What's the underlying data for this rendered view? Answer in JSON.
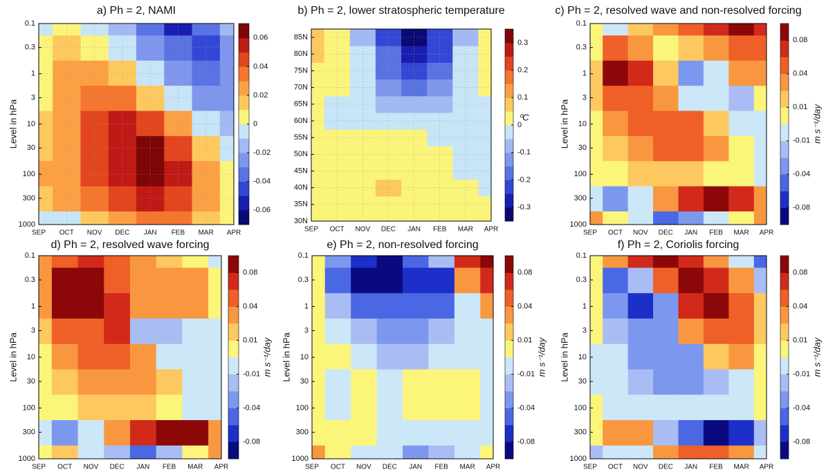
{
  "chart_data": [
    {
      "type": "contour",
      "title": "a) Ph = 2, NAMI",
      "y_label": "Level in hPa",
      "categories": [
        "SEP",
        "OCT",
        "NOV",
        "DEC",
        "JAN",
        "FEB",
        "MAR",
        "APR"
      ],
      "ylim": [
        0.1,
        1000
      ],
      "log_y": true,
      "y_reverse": true,
      "grid": true,
      "yticks": [
        0.1,
        0.3,
        1,
        3,
        10,
        30,
        100,
        300,
        1000
      ],
      "colorbar": {
        "levels": [
          -0.07,
          -0.06,
          -0.05,
          -0.04,
          -0.03,
          -0.02,
          -0.01,
          0,
          0.01,
          0.02,
          0.03,
          0.04,
          0.05,
          0.06,
          0.07
        ],
        "ticks": [
          -0.06,
          -0.04,
          -0.02,
          0,
          0.02,
          0.04,
          0.06
        ],
        "colors": [
          "#0a0a72",
          "#1a1eb0",
          "#3347d6",
          "#5a73e2",
          "#7f96ec",
          "#a3b9f3",
          "#c7e5f7",
          "#fbf47a",
          "#fdc95f",
          "#fba044",
          "#f4762f",
          "#e2461f",
          "#c01a16",
          "#7e0606"
        ]
      },
      "z": [
        [
          -0.005,
          0.005,
          -0.005,
          -0.02,
          -0.04,
          -0.06,
          -0.04,
          -0.02
        ],
        [
          0.002,
          0.01,
          0.005,
          -0.005,
          -0.03,
          -0.04,
          -0.05,
          -0.03
        ],
        [
          0.005,
          0.02,
          0.025,
          0.01,
          -0.01,
          -0.03,
          -0.035,
          -0.03
        ],
        [
          0.005,
          0.025,
          0.035,
          0.035,
          0.01,
          -0.01,
          -0.025,
          -0.025
        ],
        [
          0.01,
          0.025,
          0.04,
          0.05,
          0.04,
          0.02,
          -0.01,
          -0.02
        ],
        [
          0.01,
          0.025,
          0.04,
          0.055,
          0.065,
          0.045,
          0.01,
          -0.01
        ],
        [
          0.025,
          0.025,
          0.04,
          0.055,
          0.065,
          0.055,
          0.025,
          0.005
        ],
        [
          0.01,
          0.02,
          0.035,
          0.045,
          0.05,
          0.045,
          0.025,
          0.005
        ],
        [
          -0.005,
          -0.005,
          0.015,
          0.025,
          0.03,
          0.03,
          0.015,
          0.005
        ]
      ]
    },
    {
      "type": "contour",
      "title": "b) Ph = 2,  lower stratospheric temperature",
      "categories": [
        "SEP",
        "OCT",
        "NOV",
        "DEC",
        "JAN",
        "FEB",
        "MAR",
        "APR"
      ],
      "ylim": [
        30,
        87.5
      ],
      "log_y": false,
      "y_reverse": false,
      "grid": true,
      "yticks": [
        {
          "value": 30,
          "label": "30N"
        },
        {
          "value": 35,
          "label": "35N"
        },
        {
          "value": 40,
          "label": "40N"
        },
        {
          "value": 45,
          "label": "45N"
        },
        {
          "value": 50,
          "label": "50N"
        },
        {
          "value": 55,
          "label": "55N"
        },
        {
          "value": 60,
          "label": "60N"
        },
        {
          "value": 65,
          "label": "65N"
        },
        {
          "value": 70,
          "label": "70N"
        },
        {
          "value": 75,
          "label": "75N"
        },
        {
          "value": 80,
          "label": "80N"
        },
        {
          "value": 85,
          "label": "85N"
        }
      ],
      "colorbar": {
        "label": "⁰C",
        "levels": [
          -0.35,
          -0.3,
          -0.25,
          -0.2,
          -0.15,
          -0.1,
          -0.05,
          0,
          0.05,
          0.1,
          0.15,
          0.2,
          0.25,
          0.3,
          0.35
        ],
        "ticks": [
          -0.3,
          -0.2,
          -0.1,
          0,
          0.1,
          0.2,
          0.3
        ],
        "colors": [
          "#0a0a72",
          "#1a1eb0",
          "#3347d6",
          "#5a73e2",
          "#7f96ec",
          "#a3b9f3",
          "#c7e5f7",
          "#fbf47a",
          "#fdc95f",
          "#fba044",
          "#f4762f",
          "#e2461f",
          "#c01a16",
          "#7e0606"
        ]
      },
      "z": [
        [
          0.02,
          0.02,
          0.02,
          0.02,
          0.02,
          0.02,
          0.02,
          0.01
        ],
        [
          0.02,
          0.02,
          0.02,
          0.02,
          0.02,
          0.02,
          0.02,
          0.01
        ],
        [
          0.02,
          0.02,
          0.02,
          0.06,
          0.02,
          0.02,
          0.01,
          -0.02
        ],
        [
          0.02,
          0.02,
          0.02,
          0.04,
          0.02,
          0.01,
          -0.02,
          -0.02
        ],
        [
          0.02,
          0.02,
          0.02,
          0.03,
          0.02,
          0.01,
          -0.02,
          -0.02
        ],
        [
          0.02,
          0.02,
          0.02,
          0.02,
          0.01,
          -0.01,
          -0.01,
          -0.02
        ],
        [
          0.01,
          -0.02,
          -0.01,
          -0.02,
          -0.03,
          -0.02,
          -0.02,
          -0.02
        ],
        [
          0.01,
          -0.02,
          -0.02,
          -0.07,
          -0.1,
          -0.07,
          -0.02,
          -0.01
        ],
        [
          0.02,
          0.01,
          -0.02,
          -0.12,
          -0.17,
          -0.13,
          -0.03,
          0.01
        ],
        [
          0.03,
          0.01,
          -0.03,
          -0.17,
          -0.25,
          -0.18,
          -0.03,
          0.01
        ],
        [
          0.05,
          0.02,
          -0.03,
          -0.2,
          -0.3,
          -0.22,
          -0.05,
          0.02
        ],
        [
          0.05,
          0.02,
          -0.06,
          -0.25,
          -0.32,
          -0.25,
          -0.06,
          0.02
        ]
      ]
    },
    {
      "type": "contour",
      "title": "c) Ph = 2,  resolved wave and non-resolved forcing",
      "y_label": "Level in hPa",
      "categories": [
        "SEP",
        "OCT",
        "NOV",
        "DEC",
        "JAN",
        "FEB",
        "MAR",
        "APR"
      ],
      "ylim": [
        0.1,
        1000
      ],
      "log_y": true,
      "y_reverse": true,
      "grid": false,
      "yticks": [
        0.1,
        0.3,
        1,
        3,
        10,
        30,
        100,
        300,
        1000
      ],
      "colorbar": {
        "label": "m s⁻¹/day",
        "levels": [
          -0.1,
          -0.08,
          -0.06,
          -0.04,
          -0.02,
          -0.01,
          0,
          0.01,
          0.02,
          0.04,
          0.06,
          0.08,
          0.1
        ],
        "ticks": [
          -0.08,
          -0.04,
          -0.01,
          0.01,
          0.04,
          0.08
        ],
        "colors": [
          "#0a0a80",
          "#1c2fc8",
          "#4a68e4",
          "#7c98ee",
          "#a9bdf4",
          "#cce7f7",
          "#fbf57a",
          "#fdc860",
          "#f99740",
          "#ee6027",
          "#d12a1b",
          "#8c0808"
        ]
      },
      "z": [
        [
          0.005,
          -0.005,
          0.01,
          0.03,
          0.05,
          0.07,
          0.09,
          0.07
        ],
        [
          0.005,
          0.05,
          0.03,
          0.005,
          0.01,
          0.03,
          0.05,
          0.05
        ],
        [
          0.01,
          0.09,
          0.06,
          0.01,
          -0.03,
          -0.01,
          0.02,
          0.03
        ],
        [
          0.01,
          0.05,
          0.05,
          0.03,
          -0.01,
          -0.01,
          -0.02,
          0.005
        ],
        [
          0.005,
          0.03,
          0.05,
          0.05,
          0.04,
          0.01,
          -0.005,
          -0.005
        ],
        [
          0.005,
          0.015,
          0.03,
          0.04,
          0.05,
          0.03,
          0.005,
          -0.005
        ],
        [
          0.005,
          0.005,
          0.01,
          0.015,
          0.01,
          0.005,
          0.005,
          -0.005
        ],
        [
          -0.01,
          -0.03,
          -0.005,
          0.02,
          0.06,
          0.09,
          0.07,
          0.02
        ],
        [
          0.03,
          0.005,
          -0.005,
          -0.06,
          -0.04,
          -0.01,
          0.005,
          0.03
        ]
      ]
    },
    {
      "type": "contour",
      "title": "d) Ph = 2, resolved wave forcing",
      "y_label": "Level in hPa",
      "categories": [
        "SEP",
        "OCT",
        "NOV",
        "DEC",
        "JAN",
        "FEB",
        "MAR",
        "APR"
      ],
      "ylim": [
        0.1,
        1000
      ],
      "log_y": true,
      "y_reverse": true,
      "grid": false,
      "yticks": [
        0.1,
        0.3,
        1,
        3,
        10,
        30,
        100,
        300,
        1000
      ],
      "colorbar": {
        "label": "m s⁻¹/day",
        "levels": [
          -0.1,
          -0.08,
          -0.06,
          -0.04,
          -0.02,
          -0.01,
          0,
          0.01,
          0.02,
          0.04,
          0.06,
          0.08,
          0.1
        ],
        "ticks": [
          -0.08,
          -0.04,
          -0.01,
          0.01,
          0.04,
          0.08
        ],
        "colors": [
          "#0a0a80",
          "#1c2fc8",
          "#4a68e4",
          "#7c98ee",
          "#a9bdf4",
          "#cce7f7",
          "#fbf57a",
          "#fdc860",
          "#f99740",
          "#ee6027",
          "#d12a1b",
          "#8c0808"
        ]
      },
      "z": [
        [
          0.02,
          0.05,
          0.06,
          0.05,
          0.02,
          0.01,
          0.005,
          -0.005
        ],
        [
          0.03,
          0.09,
          0.095,
          0.05,
          0.03,
          0.02,
          0.03,
          0.005
        ],
        [
          0.02,
          0.09,
          0.09,
          0.07,
          0.03,
          0.02,
          0.03,
          0.005
        ],
        [
          0.01,
          0.04,
          0.05,
          0.06,
          -0.02,
          -0.015,
          -0.005,
          -0.01
        ],
        [
          0.005,
          0.03,
          0.04,
          0.04,
          0.02,
          -0.01,
          -0.01,
          -0.005
        ],
        [
          0.005,
          0.015,
          0.02,
          0.03,
          0.03,
          0.015,
          -0.005,
          -0.005
        ],
        [
          0.005,
          0.005,
          0.01,
          0.01,
          0.01,
          0.005,
          -0.005,
          -0.005
        ],
        [
          -0.005,
          -0.03,
          -0.005,
          0.02,
          0.07,
          0.08,
          0.09,
          0.03
        ],
        [
          0.005,
          0.01,
          -0.005,
          -0.02,
          -0.06,
          -0.02,
          0.005,
          0.02
        ]
      ]
    },
    {
      "type": "contour",
      "title": "e) Ph = 2, non-resolved forcing",
      "y_label": "Level in hPa",
      "categories": [
        "SEP",
        "OCT",
        "NOV",
        "DEC",
        "JAN",
        "FEB",
        "MAR",
        "APR"
      ],
      "ylim": [
        0.1,
        1000
      ],
      "log_y": true,
      "y_reverse": true,
      "grid": false,
      "yticks": [
        0.1,
        0.3,
        1,
        3,
        10,
        30,
        100,
        300,
        1000
      ],
      "colorbar": {
        "label": "m s⁻¹/day",
        "levels": [
          -0.1,
          -0.08,
          -0.06,
          -0.04,
          -0.02,
          -0.01,
          0,
          0.01,
          0.02,
          0.04,
          0.06,
          0.08,
          0.1
        ],
        "ticks": [
          -0.08,
          -0.04,
          -0.01,
          0.01,
          0.04,
          0.08
        ],
        "colors": [
          "#0a0a80",
          "#1c2fc8",
          "#4a68e4",
          "#7c98ee",
          "#a9bdf4",
          "#cce7f7",
          "#fbf57a",
          "#fdc860",
          "#f99740",
          "#ee6027",
          "#d12a1b",
          "#8c0808"
        ]
      },
      "z": [
        [
          0.005,
          -0.04,
          -0.08,
          -0.09,
          -0.06,
          -0.02,
          0.06,
          0.09
        ],
        [
          0.005,
          -0.05,
          -0.095,
          -0.09,
          -0.08,
          -0.07,
          0.03,
          0.06
        ],
        [
          0.005,
          -0.02,
          -0.05,
          -0.06,
          -0.06,
          -0.05,
          -0.01,
          0.02
        ],
        [
          0.005,
          -0.005,
          -0.02,
          -0.04,
          -0.04,
          -0.02,
          -0.01,
          -0.005
        ],
        [
          0.005,
          0.005,
          -0.005,
          -0.015,
          -0.015,
          -0.01,
          -0.005,
          -0.005
        ],
        [
          0.005,
          -0.005,
          0.005,
          -0.005,
          0.005,
          0.005,
          0.005,
          -0.005
        ],
        [
          0.005,
          -0.005,
          0.005,
          -0.005,
          0.005,
          0.005,
          0.005,
          -0.005
        ],
        [
          0.005,
          0.005,
          0.005,
          -0.005,
          -0.005,
          -0.005,
          -0.005,
          -0.005
        ],
        [
          0.02,
          0.005,
          -0.005,
          -0.01,
          -0.03,
          -0.02,
          -0.005,
          0.005
        ]
      ]
    },
    {
      "type": "contour",
      "title": "f) Ph = 2, Coriolis forcing",
      "y_label": "Level in hPa",
      "categories": [
        "SEP",
        "OCT",
        "NOV",
        "DEC",
        "JAN",
        "FEB",
        "MAR",
        "APR"
      ],
      "ylim": [
        0.1,
        1000
      ],
      "log_y": true,
      "y_reverse": true,
      "grid": false,
      "yticks": [
        0.1,
        0.3,
        1,
        3,
        10,
        30,
        100,
        300,
        1000
      ],
      "colorbar": {
        "label": "m s⁻¹/day",
        "levels": [
          -0.1,
          -0.08,
          -0.06,
          -0.04,
          -0.02,
          -0.01,
          0,
          0.01,
          0.02,
          0.04,
          0.06,
          0.08,
          0.1
        ],
        "ticks": [
          -0.08,
          -0.04,
          -0.01,
          0.01,
          0.04,
          0.08
        ],
        "colors": [
          "#0a0a80",
          "#1c2fc8",
          "#4a68e4",
          "#7c98ee",
          "#a9bdf4",
          "#cce7f7",
          "#fbf57a",
          "#fdc860",
          "#f99740",
          "#ee6027",
          "#d12a1b",
          "#8c0808"
        ]
      },
      "z": [
        [
          0.005,
          0.02,
          0.06,
          0.09,
          0.07,
          0.02,
          -0.01,
          -0.06
        ],
        [
          0.005,
          -0.05,
          -0.02,
          0.05,
          0.08,
          0.06,
          0.03,
          -0.02
        ],
        [
          0.005,
          -0.04,
          -0.08,
          -0.04,
          0.06,
          0.09,
          0.04,
          0.01
        ],
        [
          0.005,
          -0.02,
          -0.04,
          -0.03,
          0.02,
          0.05,
          0.04,
          0.01
        ],
        [
          -0.005,
          -0.01,
          -0.03,
          -0.04,
          -0.03,
          0.01,
          0.02,
          0.005
        ],
        [
          -0.005,
          -0.005,
          -0.02,
          -0.03,
          -0.04,
          -0.02,
          -0.01,
          0.005
        ],
        [
          0.005,
          -0.005,
          -0.005,
          -0.01,
          -0.01,
          -0.005,
          -0.005,
          0.005
        ],
        [
          0.005,
          0.03,
          0.02,
          -0.02,
          -0.06,
          -0.09,
          -0.07,
          -0.02
        ],
        [
          -0.02,
          -0.01,
          -0.005,
          0.02,
          0.05,
          0.04,
          0.02,
          -0.005
        ]
      ]
    }
  ]
}
